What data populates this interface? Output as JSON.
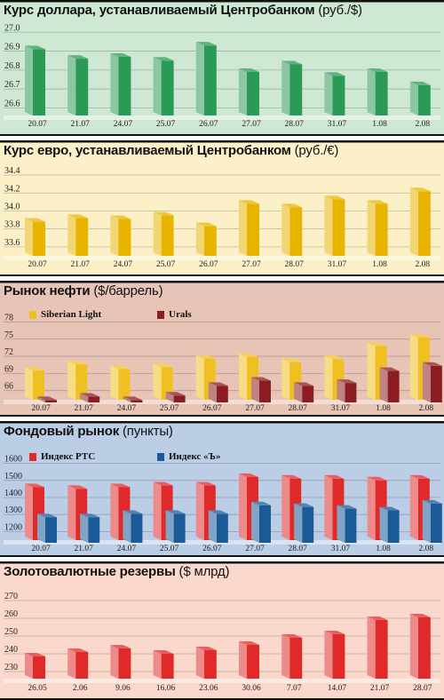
{
  "chart_data": [
    {
      "id": "usd",
      "type": "bar",
      "title": "Курс доллара, устанавливаемый Центробанком",
      "unit": "(руб./$)",
      "categories": [
        "20.07",
        "21.07",
        "24.07",
        "25.07",
        "26.07",
        "27.07",
        "28.07",
        "31.07",
        "1.08",
        "2.08"
      ],
      "series": [
        {
          "values": [
            26.91,
            26.86,
            26.87,
            26.85,
            26.93,
            26.79,
            26.83,
            26.77,
            26.79,
            26.72
          ],
          "color": "#2a9a55"
        }
      ],
      "yticks": [
        "27.0",
        "26.9",
        "26.8",
        "26.7",
        "26.6"
      ],
      "ylim": [
        26.56,
        27.02
      ],
      "background": "#cfe8d3",
      "grid": true
    },
    {
      "id": "eur",
      "type": "bar",
      "title": "Курс евро, устанавливаемый Центробанком",
      "unit": "(руб./€)",
      "categories": [
        "20.07",
        "21.07",
        "24.07",
        "25.07",
        "26.07",
        "27.07",
        "28.07",
        "31.07",
        "1.08",
        "2.08"
      ],
      "series": [
        {
          "values": [
            33.88,
            33.92,
            33.91,
            33.95,
            33.83,
            34.08,
            34.04,
            34.13,
            34.08,
            34.22
          ],
          "color": "#e8b400"
        }
      ],
      "yticks": [
        "34.4",
        "34.2",
        "34.0",
        "33.8",
        "33.6"
      ],
      "ylim": [
        33.5,
        34.45
      ],
      "background": "#fbf0c8",
      "grid": true
    },
    {
      "id": "oil",
      "type": "bar",
      "title": "Рынок нефти",
      "unit": "($/баррель)",
      "categories": [
        "20.07",
        "21.07",
        "24.07",
        "25.07",
        "26.07",
        "27.07",
        "28.07",
        "31.07",
        "1.08",
        "2.08"
      ],
      "series": [
        {
          "name": "Siberian Light",
          "values": [
            69.5,
            70.6,
            69.8,
            70.1,
            71.6,
            71.9,
            71.0,
            71.5,
            73.8,
            75.3
          ],
          "color": "#f0c020"
        },
        {
          "name": "Urals",
          "values": [
            64.8,
            65.4,
            64.8,
            65.6,
            67.3,
            68.2,
            67.3,
            67.8,
            69.9,
            70.8
          ],
          "color": "#8a1c22"
        }
      ],
      "yticks": [
        "78",
        "75",
        "72",
        "69",
        "66"
      ],
      "ylim": [
        64.4,
        79
      ],
      "background": "#e8c4b6",
      "grid": true
    },
    {
      "id": "stock",
      "type": "bar",
      "title": "Фондовый рынок",
      "unit": "(пункты)",
      "categories": [
        "20.07",
        "21.07",
        "24.07",
        "25.07",
        "26.07",
        "27.07",
        "28.07",
        "31.07",
        "1.08",
        "2.08"
      ],
      "series": [
        {
          "name": "Индекс РТС",
          "values": [
            1460,
            1450,
            1460,
            1470,
            1470,
            1520,
            1510,
            1510,
            1500,
            1510
          ],
          "color": "#e02a2a"
        },
        {
          "name": "Индекс «Ъ»",
          "values": [
            1300,
            1300,
            1320,
            1320,
            1320,
            1370,
            1360,
            1350,
            1340,
            1380
          ],
          "color": "#1a5a96"
        }
      ],
      "yticks": [
        "1600",
        "1500",
        "1400",
        "1300",
        "1200"
      ],
      "ylim": [
        1150,
        1650
      ],
      "background": "#bccde6",
      "grid": true
    },
    {
      "id": "reserves",
      "type": "bar",
      "title": "Золотовалютные резервы",
      "unit": "($ млрд)",
      "categories": [
        "26.05",
        "2.06",
        "9.06",
        "16.06",
        "23.06",
        "30.06",
        "7.07",
        "14.07",
        "21.07",
        "28.07"
      ],
      "series": [
        {
          "values": [
            238.5,
            241,
            243,
            240,
            242,
            245,
            249,
            251,
            259,
            260.5
          ],
          "color": "#e02a2a"
        }
      ],
      "yticks": [
        "270",
        "260",
        "250",
        "240",
        "230"
      ],
      "ylim": [
        226,
        275
      ],
      "background": "#fad8cc",
      "grid": true
    }
  ]
}
